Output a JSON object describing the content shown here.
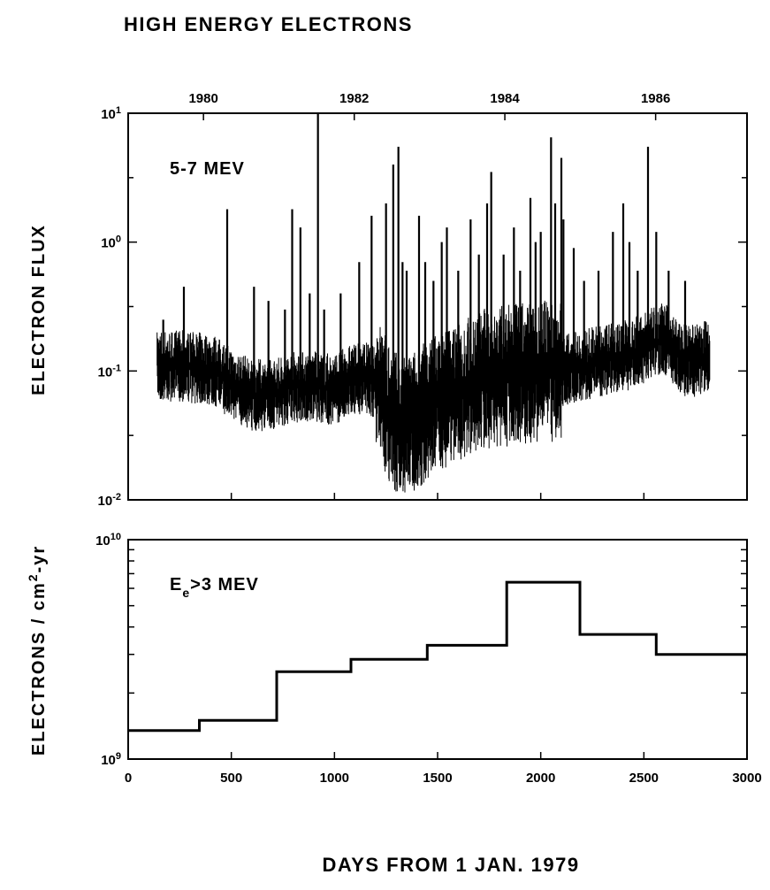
{
  "figure": {
    "title": "HIGH ENERGY ELECTRONS",
    "xlabel": "DAYS FROM 1 JAN. 1979",
    "ylabel_upper": "ELECTRON FLUX",
    "ylabel_lower_pre": "ELECTRONS / cm",
    "ylabel_lower_sup": "2",
    "ylabel_lower_post": "-yr"
  },
  "chart_data": [
    {
      "type": "line",
      "annotation": "5-7 MEV",
      "xlabel": "DAYS FROM 1 JAN. 1979",
      "ylabel": "ELECTRON FLUX",
      "xlim": [
        0,
        3000
      ],
      "ylim": [
        0.01,
        10
      ],
      "yscale": "log",
      "top_axis_ticks": [
        {
          "day": 365,
          "label": "1980"
        },
        {
          "day": 1096,
          "label": "1982"
        },
        {
          "day": 1826,
          "label": "1984"
        },
        {
          "day": 2557,
          "label": "1986"
        }
      ],
      "ytick_labels": [
        {
          "value": 10,
          "base": "10",
          "exp": "1"
        },
        {
          "value": 1,
          "base": "10",
          "exp": "0"
        },
        {
          "value": 0.1,
          "base": "10",
          "exp": "-1"
        },
        {
          "value": 0.01,
          "base": "10",
          "exp": "-2"
        }
      ],
      "baseline": {
        "x": [
          140,
          250,
          350,
          420,
          500,
          600,
          700,
          800,
          900,
          1000,
          1080,
          1150,
          1200,
          1260,
          1320,
          1380,
          1450,
          1520,
          1600,
          1700,
          1800,
          1900,
          2000,
          2100,
          2200,
          2300,
          2400,
          2500,
          2550,
          2600,
          2650,
          2700,
          2750,
          2800,
          2820
        ],
        "y": [
          0.11,
          0.11,
          0.105,
          0.1,
          0.08,
          0.065,
          0.065,
          0.075,
          0.075,
          0.072,
          0.085,
          0.09,
          0.08,
          0.05,
          0.035,
          0.04,
          0.05,
          0.06,
          0.07,
          0.085,
          0.09,
          0.095,
          0.1,
          0.1,
          0.11,
          0.12,
          0.13,
          0.15,
          0.17,
          0.18,
          0.14,
          0.12,
          0.12,
          0.13,
          0.13
        ]
      },
      "spikes": {
        "x": [
          170,
          270,
          480,
          610,
          680,
          760,
          795,
          835,
          880,
          920,
          950,
          1030,
          1120,
          1180,
          1250,
          1285,
          1310,
          1330,
          1350,
          1410,
          1440,
          1480,
          1520,
          1545,
          1600,
          1660,
          1700,
          1740,
          1760,
          1820,
          1870,
          1900,
          1950,
          1975,
          2000,
          2050,
          2070,
          2100,
          2110,
          2160,
          2210,
          2280,
          2350,
          2400,
          2430,
          2470,
          2520,
          2560,
          2620,
          2700
        ],
        "y": [
          0.25,
          0.45,
          1.8,
          0.45,
          0.35,
          0.3,
          1.8,
          1.3,
          0.4,
          10,
          0.3,
          0.4,
          0.7,
          1.6,
          2.0,
          4.0,
          5.5,
          0.7,
          0.6,
          1.6,
          0.7,
          0.5,
          1.0,
          1.3,
          0.6,
          1.5,
          0.8,
          2.0,
          3.5,
          0.8,
          1.3,
          0.6,
          2.2,
          1.0,
          1.2,
          6.5,
          2.0,
          4.5,
          1.5,
          0.9,
          0.5,
          0.6,
          1.2,
          2.0,
          1.0,
          0.6,
          5.5,
          1.2,
          0.6,
          0.5
        ]
      }
    },
    {
      "type": "line",
      "style": "step",
      "annotation_base": "E",
      "annotation_sub": "e",
      "annotation_rest": ">3 MEV",
      "xlabel": "DAYS FROM 1 JAN. 1979",
      "xlim": [
        0,
        3000
      ],
      "ylim": [
        1000000000,
        10000000000
      ],
      "yscale": "log",
      "xtick_labels": [
        {
          "value": 0,
          "label": "0"
        },
        {
          "value": 500,
          "label": "500"
        },
        {
          "value": 1000,
          "label": "1000"
        },
        {
          "value": 1500,
          "label": "1500"
        },
        {
          "value": 2000,
          "label": "2000"
        },
        {
          "value": 2500,
          "label": "2500"
        },
        {
          "value": 3000,
          "label": "3000"
        }
      ],
      "ytick_labels": [
        {
          "value": 10000000000,
          "base": "10",
          "exp": "10"
        },
        {
          "value": 1000000000,
          "base": "10",
          "exp": "9"
        }
      ],
      "steps": [
        {
          "x0": 0,
          "x1": 345,
          "y": 1350000000
        },
        {
          "x0": 345,
          "x1": 720,
          "y": 1500000000
        },
        {
          "x0": 720,
          "x1": 1080,
          "y": 2500000000
        },
        {
          "x0": 1080,
          "x1": 1450,
          "y": 2850000000
        },
        {
          "x0": 1450,
          "x1": 1835,
          "y": 3300000000
        },
        {
          "x0": 1835,
          "x1": 2190,
          "y": 6400000000
        },
        {
          "x0": 2190,
          "x1": 2560,
          "y": 3700000000
        },
        {
          "x0": 2560,
          "x1": 3000,
          "y": 3000000000
        }
      ]
    }
  ]
}
